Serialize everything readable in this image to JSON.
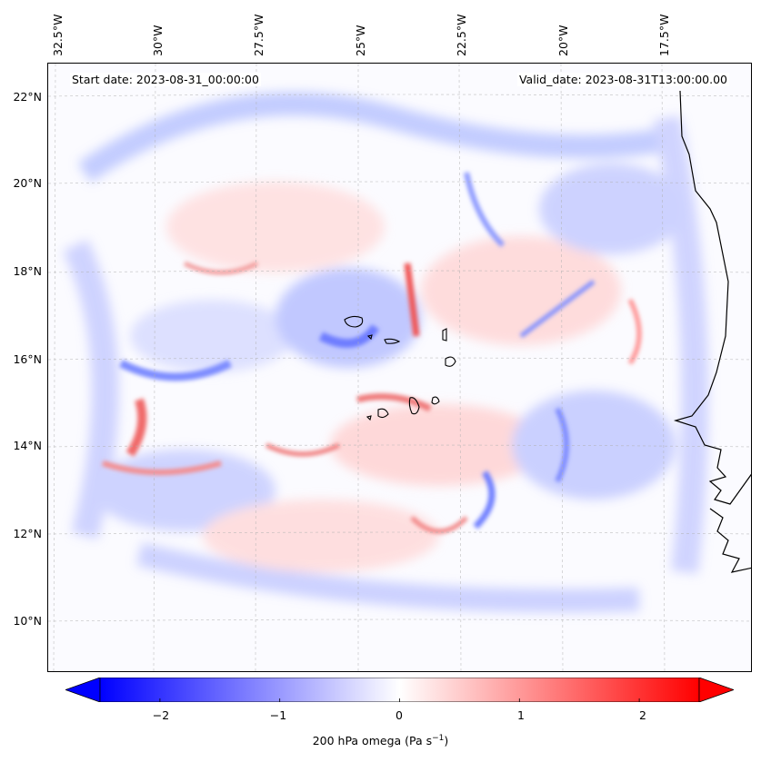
{
  "annotations": {
    "start_date": "Start date: 2023-08-31_00:00:00",
    "valid_date": "Valid_date: 2023-08-31T13:00:00.00"
  },
  "longitude_labels": [
    "32.5°W",
    "30°W",
    "27.5°W",
    "25°W",
    "22.5°W",
    "20°W",
    "17.5°W"
  ],
  "latitude_labels": [
    "22°N",
    "20°N",
    "18°N",
    "16°N",
    "14°N",
    "12°N",
    "10°N"
  ],
  "colorbar": {
    "ticks": [
      "−2",
      "−1",
      "0",
      "1",
      "2"
    ],
    "tick_values": [
      -2,
      -1,
      0,
      1,
      2
    ],
    "range": [
      -2.5,
      2.5
    ],
    "label": "200 hPa omega (Pa s",
    "label_exponent": "−1",
    "label_suffix": ")",
    "colormap": "bwr",
    "extend": "both",
    "negative_color": "#0000ff",
    "zero_color": "#ffffff",
    "positive_color": "#ff0000"
  },
  "map": {
    "lon_range": [
      -33,
      -15
    ],
    "lat_range": [
      9,
      22.8
    ],
    "coastline_color": "#000000",
    "gridlines": "dashed",
    "features": [
      "west-africa-coastline",
      "cape-verde-islands"
    ]
  }
}
